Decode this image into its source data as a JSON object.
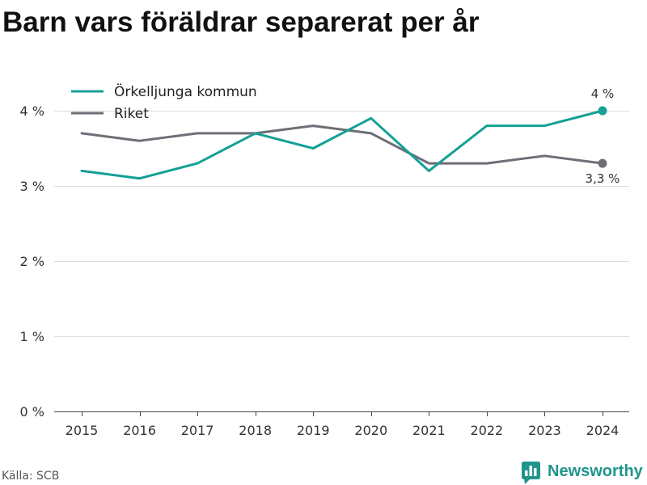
{
  "chart_data": {
    "type": "line",
    "title": "Barn vars föräldrar separerat per år",
    "categories": [
      "2015",
      "2016",
      "2017",
      "2018",
      "2019",
      "2020",
      "2021",
      "2022",
      "2023",
      "2024"
    ],
    "series": [
      {
        "name": "Örkelljunga kommun",
        "color": "#14a096",
        "values": [
          3.2,
          3.1,
          3.3,
          3.7,
          3.5,
          3.9,
          3.2,
          3.8,
          3.8,
          4.0
        ]
      },
      {
        "name": "Riket",
        "color": "#6e6e76",
        "values": [
          3.7,
          3.6,
          3.7,
          3.7,
          3.8,
          3.7,
          3.3,
          3.3,
          3.4,
          3.3
        ]
      }
    ],
    "ylim": [
      0,
      4
    ],
    "y_ticks": [
      {
        "value": 0,
        "label": "0 %"
      },
      {
        "value": 1,
        "label": "1 %"
      },
      {
        "value": 2,
        "label": "2 %"
      },
      {
        "value": 3,
        "label": "3 %"
      },
      {
        "value": 4,
        "label": "4 %"
      }
    ],
    "grid": true,
    "legend": "top-left",
    "annotations": [
      {
        "series": "Örkelljunga kommun",
        "x": "2024",
        "text": "4 %"
      },
      {
        "series": "Riket",
        "x": "2024",
        "text": "3,3 %"
      }
    ]
  },
  "source": "Källa: SCB",
  "logo": {
    "text": "Newsworthy",
    "icon": "newsworthy-logo-icon",
    "color": "#1f958c"
  }
}
